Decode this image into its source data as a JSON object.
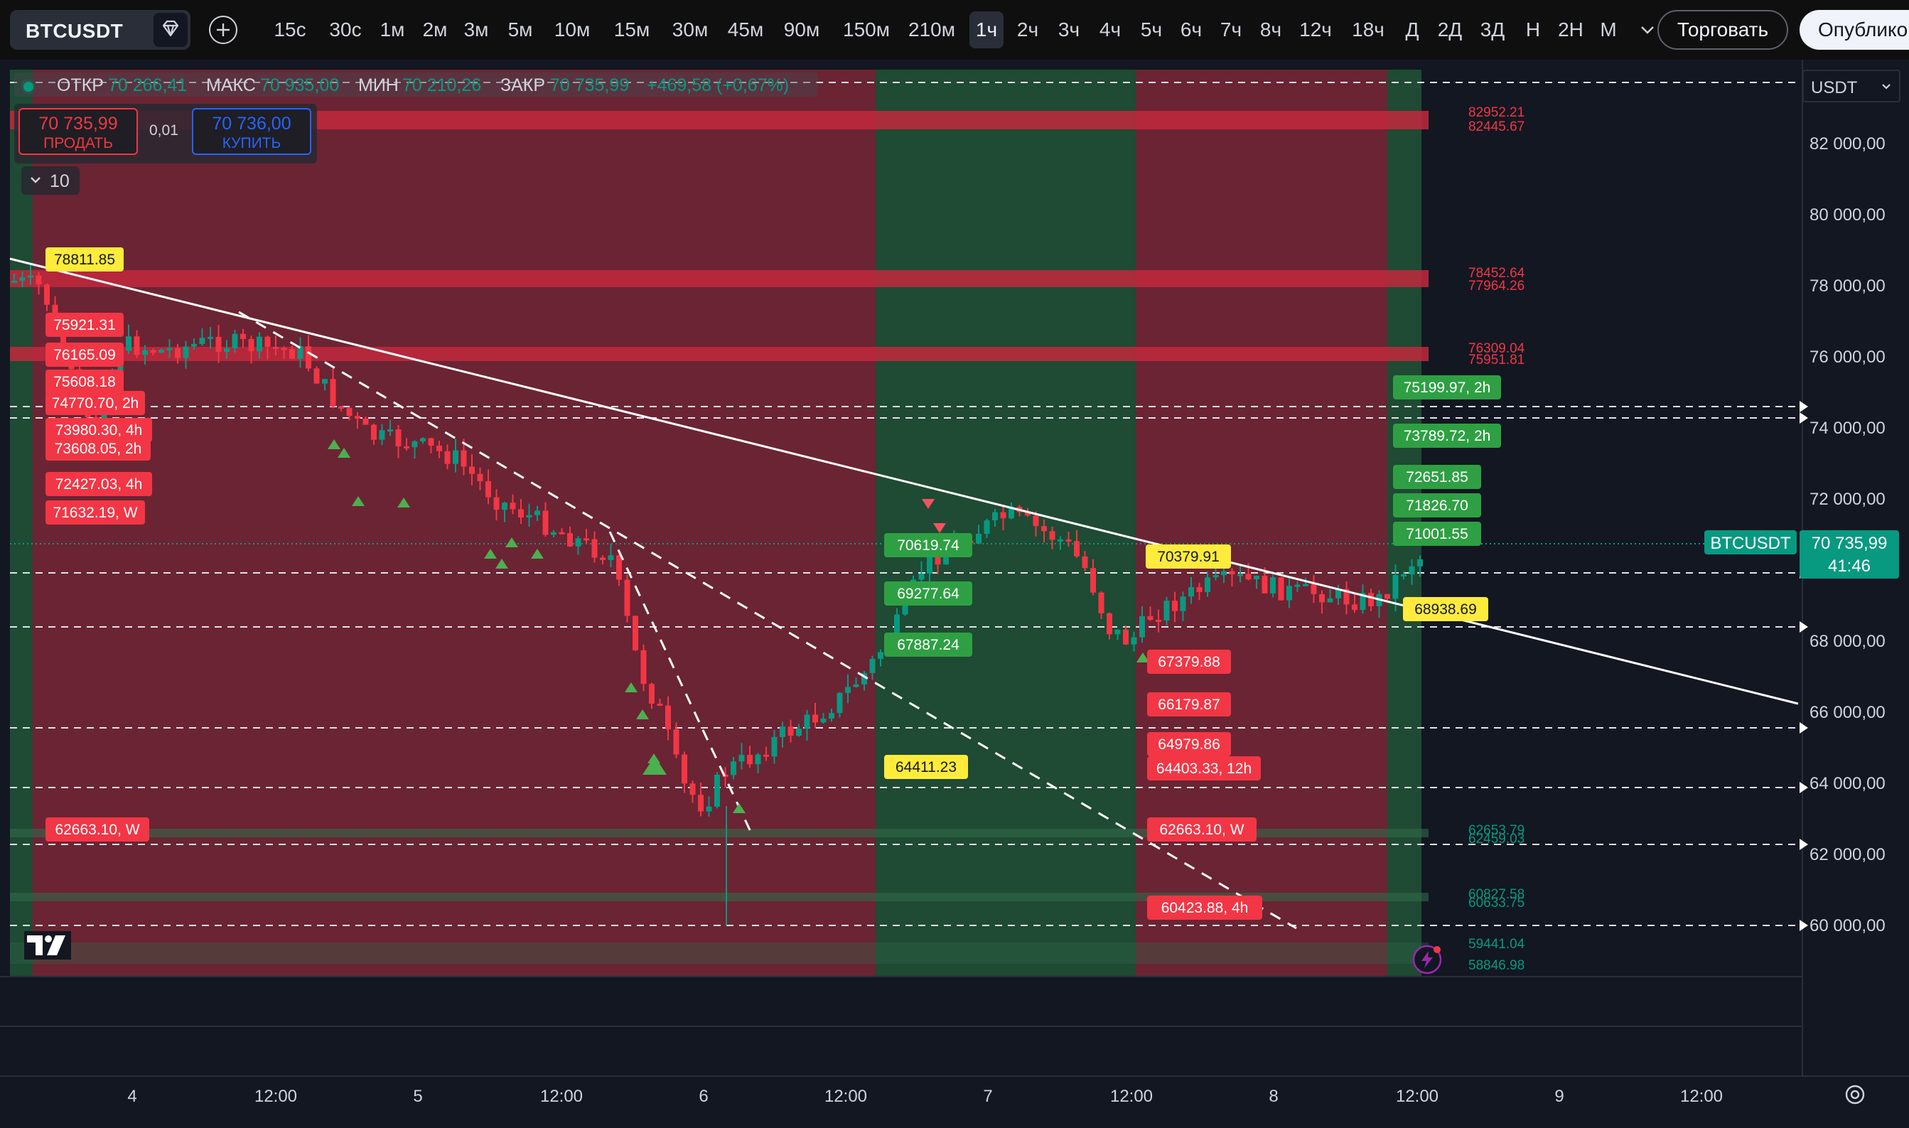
{
  "toolbar": {
    "symbol": "BTCUSDT",
    "timeframes": [
      "15с",
      "30с",
      "1м",
      "2м",
      "3м",
      "5м",
      "10м",
      "15м",
      "30м",
      "45м",
      "90м",
      "150м",
      "210м",
      "1ч",
      "2ч",
      "3ч",
      "4ч",
      "5ч",
      "6ч",
      "7ч",
      "8ч",
      "12ч",
      "18ч",
      "Д",
      "2Д",
      "3Д",
      "Н",
      "2Н",
      "М"
    ],
    "active_timeframe": "1ч",
    "trade_label": "Торговать",
    "publish_label": "Опублико"
  },
  "legend": {
    "open_label": "ОТКР",
    "open_value": "70 266,41",
    "high_label": "МАКС",
    "high_value": "70 935,00",
    "low_label": "МИН",
    "low_value": "70 210,26",
    "close_label": "ЗАКР",
    "close_value": "70 735,99",
    "change": "+469,58 (+0,67%)"
  },
  "trade_panel": {
    "sell_price": "70 735,99",
    "sell_label": "ПРОДАТЬ",
    "spread": "0,01",
    "buy_price": "70 736,00",
    "buy_label": "КУПИТЬ"
  },
  "indicators_toggle": {
    "count": "10"
  },
  "currency_select": "USDT",
  "price_axis": {
    "ticks": [
      "82 000,00",
      "80 000,00",
      "78 000,00",
      "76 000,00",
      "74 000,00",
      "72 000,00",
      "68 000,00",
      "66 000,00",
      "64 000,00",
      "62 000,00",
      "60 000,00"
    ],
    "current_symbol": "BTCUSDT",
    "current_price": "70 735,99",
    "countdown": "41:46"
  },
  "time_axis": {
    "ticks": [
      "4",
      "12:00",
      "5",
      "12:00",
      "6",
      "12:00",
      "7",
      "12:00",
      "8",
      "12:00",
      "9",
      "12:00"
    ]
  },
  "zone_labels": {
    "red": [
      "82952.21",
      "82445.67",
      "78452.64",
      "77964.26",
      "76309.04",
      "75951.81"
    ],
    "green": [
      "62653.79",
      "62459.03",
      "60827.58",
      "60633.75",
      "59441.04",
      "58846.98"
    ]
  },
  "level_tags": {
    "yellow": [
      "78811.85",
      "70379.91",
      "68938.69",
      "64411.23"
    ],
    "red_left": [
      "75921.31",
      "76165.09",
      "75608.18",
      "74770.70, 2h",
      "73980.30, 4h",
      "73608.05, 2h",
      "72427.03, 4h",
      "71632.19, W",
      "62663.10, W"
    ],
    "red_right": [
      "67379.88",
      "66179.87",
      "64979.86",
      "64403.33, 12h",
      "62663.10, W",
      "60423.88, 4h"
    ],
    "green_mid": [
      "70619.74",
      "69277.64",
      "67887.24"
    ],
    "green_right": [
      "75199.97, 2h",
      "73789.72, 2h",
      "72651.85",
      "71826.70",
      "71001.55"
    ]
  },
  "colors": {
    "background": "#131722",
    "bull": "#089981",
    "bear": "#f23645",
    "zone_red": "#6b2433",
    "zone_green": "#1f4a33",
    "tag_yellow": "#ffeb3b",
    "tag_red": "#f23645",
    "tag_green": "#2ea043"
  }
}
